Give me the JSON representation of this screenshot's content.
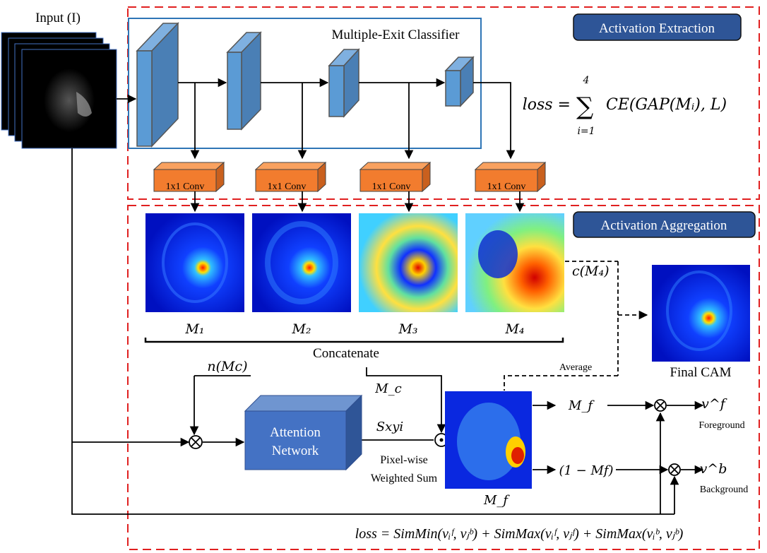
{
  "input_label": "Input (I)",
  "classifier_title": "Multiple-Exit Classifier",
  "conv_label": "1x1 Conv",
  "section_extraction": "Activation Extraction",
  "section_aggregation": "Activation Aggregation",
  "loss_top": {
    "lhs": "loss =",
    "sum_upper": "4",
    "sum_lower": "i=1",
    "rhs": "CE(GAP(Mᵢ), L)"
  },
  "maps": [
    "M₁",
    "M₂",
    "M₃",
    "M₄"
  ],
  "concatenate": "Concatenate",
  "c_m4": "c(M₄)",
  "average": "Average",
  "final_cam": "Final CAM",
  "n_mc": "n(Mc)",
  "mc": "M_c",
  "attention_network": [
    "Attention",
    "Network"
  ],
  "s_xyi": "Sxyi",
  "pixel_wise": [
    "Pixel-wise",
    "Weighted Sum"
  ],
  "mf_label": "M_f",
  "mf_branch": "M_f",
  "one_minus_mf": "(1 − Mf)",
  "vf": "v^f",
  "vb": "v^b",
  "foreground": "Foreground",
  "background": "Background",
  "loss_bottom": "loss = SimMin(vᵢᶠ, vⱼᵇ) + SimMax(vᵢᶠ, vⱼᶠ) + SimMax(vᵢᵇ, vⱼᵇ)",
  "colors": {
    "dashed_border": "#e02020",
    "section_badge": "#2e5597",
    "cube": "#5b9bd5",
    "conv": "#f27c2e",
    "classifier_border": "#2e75b6"
  }
}
